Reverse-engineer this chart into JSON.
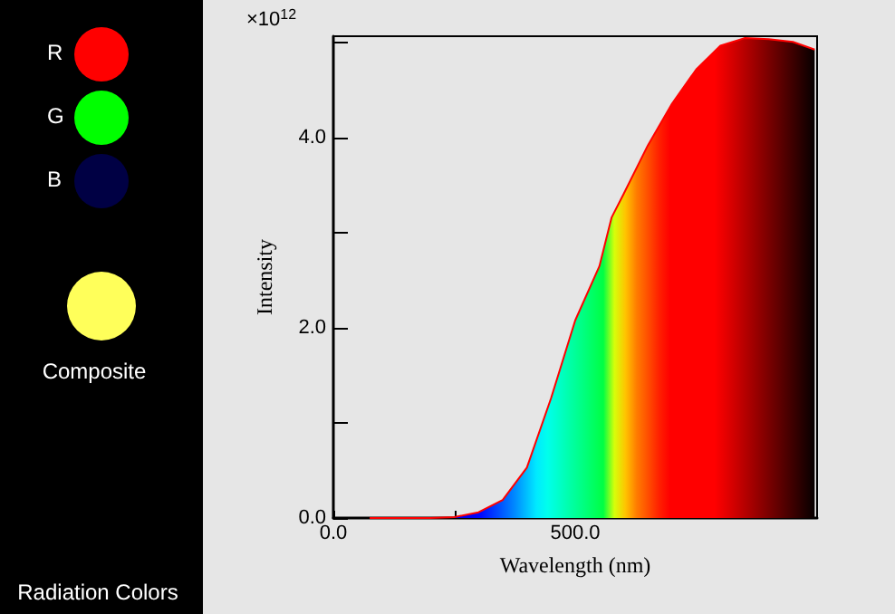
{
  "chart_data": {
    "type": "area",
    "xlabel": "Wavelength (nm)",
    "ylabel": "Intensity",
    "annotations": [
      "×10$^{12}$",
      "R",
      "G",
      "B",
      "Composite",
      "Radiation Colors"
    ],
    "x": [
      75,
      200,
      250,
      300,
      350,
      400,
      450,
      500,
      550,
      575,
      600,
      650,
      700,
      750,
      800,
      850,
      900,
      950,
      995
    ],
    "series": [
      {
        "color": "#ff0000",
        "values": [
          0,
          0,
          0.01,
          0.06,
          0.19,
          0.53,
          1.26,
          2.08,
          2.65,
          3.16,
          3.41,
          3.92,
          4.36,
          4.72,
          4.97,
          5.05,
          5.04,
          5.01,
          4.93
        ]
      }
    ],
    "xlim": [
      0,
      1000
    ],
    "xticks": [
      {
        "value": 0,
        "label": "0.0"
      },
      {
        "value": 250,
        "label": null
      },
      {
        "value": 500,
        "label": "500.0"
      }
    ],
    "ylim": [
      0,
      5.07
    ],
    "yticks": [
      {
        "value": 0,
        "label": "0.0"
      },
      {
        "value": 1,
        "label": null
      },
      {
        "value": 2,
        "label": "2.0"
      },
      {
        "value": 3,
        "label": null
      },
      {
        "value": 4,
        "label": "4.0"
      },
      {
        "value": 5,
        "label": null
      }
    ],
    "marker": "none",
    "line_style": "solid"
  }
}
